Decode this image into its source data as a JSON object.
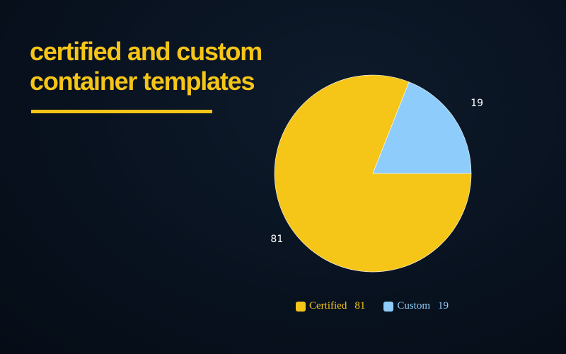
{
  "title_lines": [
    "certified and custom",
    "container templates"
  ],
  "chart_data": {
    "type": "pie",
    "categories": [
      "Certified",
      "Custom"
    ],
    "values": [
      81,
      19
    ],
    "colors": [
      "#f5c518",
      "#8ecdfb"
    ],
    "data_labels": [
      "81",
      "19"
    ],
    "legend": [
      {
        "label": "Certified",
        "value": "81"
      },
      {
        "label": "Custom",
        "value": "19"
      }
    ],
    "legend_position": "bottom"
  }
}
